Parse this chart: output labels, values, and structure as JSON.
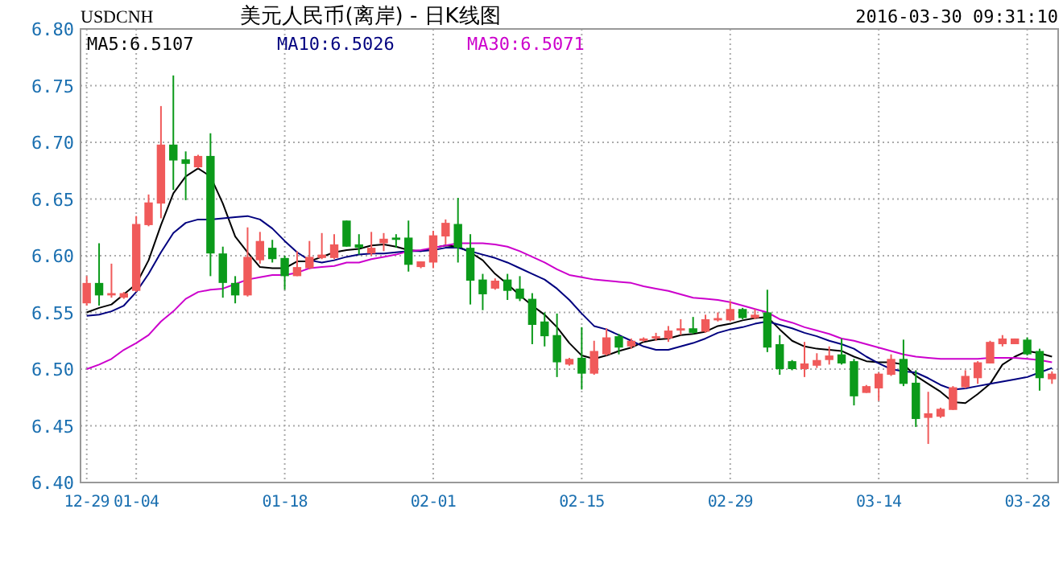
{
  "chart_data": {
    "type": "candlestick",
    "title": "美元人民币(离岸) - 日K线图",
    "subtitle": "USDCNH",
    "annotations": [
      "2016-03-30 09:31:10"
    ],
    "categories": [
      "12-29",
      null,
      null,
      null,
      "01-04",
      null,
      null,
      null,
      null,
      null,
      null,
      null,
      null,
      null,
      null,
      null,
      "01-18",
      null,
      null,
      null,
      null,
      null,
      null,
      null,
      null,
      null,
      null,
      null,
      "02-01",
      null,
      null,
      null,
      null,
      null,
      null,
      null,
      null,
      null,
      null,
      null,
      "02-15",
      null,
      null,
      null,
      null,
      null,
      null,
      null,
      null,
      null,
      null,
      null,
      "02-29",
      null,
      null,
      null,
      null,
      null,
      null,
      null,
      null,
      null,
      null,
      null,
      "03-14",
      null,
      null,
      null,
      null,
      null,
      null,
      null,
      null,
      null,
      null,
      null,
      "03-28",
      null,
      null
    ],
    "ohlc": [
      [
        6.558,
        6.582,
        6.556,
        6.576
      ],
      [
        6.576,
        6.611,
        6.556,
        6.565
      ],
      [
        6.565,
        6.593,
        6.563,
        6.567
      ],
      [
        6.563,
        6.568,
        6.562,
        6.567
      ],
      [
        6.569,
        6.635,
        6.568,
        6.628
      ],
      [
        6.627,
        6.654,
        6.626,
        6.647
      ],
      [
        6.646,
        6.732,
        6.633,
        6.698
      ],
      [
        6.698,
        6.759,
        6.658,
        6.684
      ],
      [
        6.685,
        6.692,
        6.649,
        6.681
      ],
      [
        6.678,
        6.689,
        6.677,
        6.688
      ],
      [
        6.688,
        6.708,
        6.582,
        6.602
      ],
      [
        6.602,
        6.608,
        6.563,
        6.576
      ],
      [
        6.576,
        6.582,
        6.558,
        6.565
      ],
      [
        6.565,
        6.625,
        6.564,
        6.599
      ],
      [
        6.596,
        6.621,
        6.593,
        6.613
      ],
      [
        6.607,
        6.614,
        6.594,
        6.597
      ],
      [
        6.598,
        6.6,
        6.57,
        6.582
      ],
      [
        6.582,
        6.604,
        6.582,
        6.59
      ],
      [
        6.589,
        6.613,
        6.588,
        6.599
      ],
      [
        6.598,
        6.62,
        6.597,
        6.601
      ],
      [
        6.598,
        6.619,
        6.597,
        6.61
      ],
      [
        6.631,
        6.631,
        6.608,
        6.608
      ],
      [
        6.61,
        6.619,
        6.601,
        6.607
      ],
      [
        6.602,
        6.621,
        6.6,
        6.607
      ],
      [
        6.611,
        6.62,
        6.604,
        6.615
      ],
      [
        6.616,
        6.619,
        6.607,
        6.614
      ],
      [
        6.616,
        6.631,
        6.586,
        6.592
      ],
      [
        6.59,
        6.595,
        6.589,
        6.595
      ],
      [
        6.594,
        6.622,
        6.589,
        6.618
      ],
      [
        6.617,
        6.632,
        6.61,
        6.629
      ],
      [
        6.628,
        6.651,
        6.594,
        6.607
      ],
      [
        6.607,
        6.619,
        6.557,
        6.578
      ],
      [
        6.579,
        6.584,
        6.552,
        6.566
      ],
      [
        6.571,
        6.58,
        6.57,
        6.578
      ],
      [
        6.579,
        6.584,
        6.561,
        6.569
      ],
      [
        6.571,
        6.582,
        6.56,
        6.562
      ],
      [
        6.562,
        6.567,
        6.522,
        6.539
      ],
      [
        6.542,
        6.55,
        6.52,
        6.529
      ],
      [
        6.53,
        6.549,
        6.493,
        6.506
      ],
      [
        6.504,
        6.51,
        6.503,
        6.509
      ],
      [
        6.51,
        6.537,
        6.482,
        6.496
      ],
      [
        6.496,
        6.525,
        6.495,
        6.516
      ],
      [
        6.513,
        6.536,
        6.512,
        6.528
      ],
      [
        6.529,
        6.531,
        6.513,
        6.519
      ],
      [
        6.52,
        6.527,
        6.518,
        6.525
      ],
      [
        6.525,
        6.528,
        6.524,
        6.527
      ],
      [
        6.527,
        6.532,
        6.525,
        6.529
      ],
      [
        6.527,
        6.538,
        6.524,
        6.534
      ],
      [
        6.534,
        6.544,
        6.53,
        6.536
      ],
      [
        6.536,
        6.546,
        6.531,
        6.532
      ],
      [
        6.533,
        6.548,
        6.532,
        6.544
      ],
      [
        6.543,
        6.55,
        6.542,
        6.545
      ],
      [
        6.543,
        6.56,
        6.542,
        6.553
      ],
      [
        6.553,
        6.554,
        6.544,
        6.545
      ],
      [
        6.545,
        6.553,
        6.544,
        6.548
      ],
      [
        6.55,
        6.57,
        6.515,
        6.519
      ],
      [
        6.522,
        6.53,
        6.495,
        6.5
      ],
      [
        6.507,
        6.508,
        6.499,
        6.5
      ],
      [
        6.5,
        6.524,
        6.493,
        6.505
      ],
      [
        6.503,
        6.514,
        6.501,
        6.508
      ],
      [
        6.508,
        6.52,
        6.504,
        6.512
      ],
      [
        6.513,
        6.527,
        6.504,
        6.505
      ],
      [
        6.507,
        6.509,
        6.468,
        6.476
      ],
      [
        6.479,
        6.486,
        6.479,
        6.485
      ],
      [
        6.483,
        6.497,
        6.472,
        6.496
      ],
      [
        6.495,
        6.513,
        6.494,
        6.509
      ],
      [
        6.509,
        6.526,
        6.485,
        6.487
      ],
      [
        6.488,
        6.499,
        6.449,
        6.456
      ],
      [
        6.457,
        6.48,
        6.434,
        6.461
      ],
      [
        6.458,
        6.466,
        6.457,
        6.465
      ],
      [
        6.464,
        6.485,
        6.464,
        6.484
      ],
      [
        6.484,
        6.499,
        6.483,
        6.494
      ],
      [
        6.492,
        6.507,
        6.487,
        6.506
      ],
      [
        6.505,
        6.525,
        6.505,
        6.524
      ],
      [
        6.522,
        6.53,
        6.52,
        6.527
      ],
      [
        6.522,
        6.527,
        6.522,
        6.527
      ],
      [
        6.526,
        6.528,
        6.512,
        6.513
      ],
      [
        6.516,
        6.518,
        6.481,
        6.492
      ],
      [
        6.491,
        6.498,
        6.487,
        6.496
      ]
    ],
    "series": [
      {
        "name": "MA5:6.5107",
        "type": "line",
        "color": "#000000",
        "values": [
          6.55,
          6.554,
          6.557,
          6.566,
          6.575,
          6.596,
          6.627,
          6.655,
          6.67,
          6.677,
          6.67,
          6.646,
          6.617,
          6.603,
          6.59,
          6.589,
          6.589,
          6.595,
          6.595,
          6.599,
          6.603,
          6.605,
          6.606,
          6.609,
          6.61,
          6.608,
          6.605,
          6.604,
          6.607,
          6.609,
          6.608,
          6.603,
          6.596,
          6.584,
          6.575,
          6.565,
          6.556,
          6.548,
          6.537,
          6.523,
          6.512,
          6.509,
          6.512,
          6.516,
          6.519,
          6.524,
          6.526,
          6.527,
          6.53,
          6.531,
          6.533,
          6.538,
          6.54,
          6.543,
          6.545,
          6.546,
          6.535,
          6.525,
          6.52,
          6.518,
          6.517,
          6.516,
          6.511,
          6.507,
          6.506,
          6.506,
          6.504,
          6.494,
          6.487,
          6.48,
          6.471,
          6.47,
          6.478,
          6.487,
          6.504,
          6.511,
          6.516,
          6.514,
          6.511
        ]
      },
      {
        "name": "MA10:6.5026",
        "type": "line",
        "color": "#00007f",
        "values": [
          6.547,
          6.548,
          6.551,
          6.556,
          6.568,
          6.584,
          6.603,
          6.62,
          6.629,
          6.632,
          6.632,
          6.633,
          6.634,
          6.635,
          6.632,
          6.624,
          6.613,
          6.603,
          6.596,
          6.594,
          6.596,
          6.599,
          6.601,
          6.602,
          6.602,
          6.603,
          6.604,
          6.604,
          6.605,
          6.607,
          6.607,
          6.604,
          6.601,
          6.598,
          6.594,
          6.589,
          6.584,
          6.579,
          6.571,
          6.561,
          6.549,
          6.538,
          6.535,
          6.53,
          6.525,
          6.52,
          6.517,
          6.517,
          6.52,
          6.523,
          6.527,
          6.532,
          6.535,
          6.537,
          6.54,
          6.542,
          6.539,
          6.536,
          6.532,
          6.529,
          6.525,
          6.522,
          6.518,
          6.511,
          6.505,
          6.5,
          6.498,
          6.497,
          6.492,
          6.486,
          6.482,
          6.483,
          6.485,
          6.487,
          6.489,
          6.491,
          6.493,
          6.497,
          6.501
        ]
      },
      {
        "name": "MA30:6.5071",
        "type": "line",
        "color": "#cc00cc",
        "values": [
          6.5,
          6.504,
          6.509,
          6.517,
          6.523,
          6.53,
          6.542,
          6.551,
          6.562,
          6.568,
          6.57,
          6.571,
          6.575,
          6.579,
          6.581,
          6.583,
          6.583,
          6.585,
          6.589,
          6.59,
          6.591,
          6.594,
          6.594,
          6.597,
          6.599,
          6.601,
          6.604,
          6.605,
          6.607,
          6.609,
          6.611,
          6.611,
          6.611,
          6.61,
          6.608,
          6.604,
          6.599,
          6.594,
          6.588,
          6.583,
          6.581,
          6.579,
          6.578,
          6.577,
          6.576,
          6.573,
          6.571,
          6.569,
          6.566,
          6.563,
          6.562,
          6.561,
          6.559,
          6.556,
          6.553,
          6.55,
          6.544,
          6.541,
          6.537,
          6.534,
          6.531,
          6.527,
          6.525,
          6.522,
          6.519,
          6.516,
          6.513,
          6.511,
          6.51,
          6.509,
          6.509,
          6.509,
          6.509,
          6.51,
          6.51,
          6.51,
          6.509,
          6.508,
          6.506
        ]
      }
    ],
    "ylim": [
      6.4,
      6.8
    ],
    "yticks": [
      {
        "value": 6.4,
        "label": "6.40"
      },
      {
        "value": 6.45,
        "label": "6.45"
      },
      {
        "value": 6.5,
        "label": "6.50"
      },
      {
        "value": 6.55,
        "label": "6.55"
      },
      {
        "value": 6.6,
        "label": "6.60"
      },
      {
        "value": 6.65,
        "label": "6.65"
      },
      {
        "value": 6.7,
        "label": "6.70"
      },
      {
        "value": 6.75,
        "label": "6.75"
      },
      {
        "value": 6.8,
        "label": "6.80"
      }
    ],
    "grid": true,
    "legend": "top left"
  }
}
